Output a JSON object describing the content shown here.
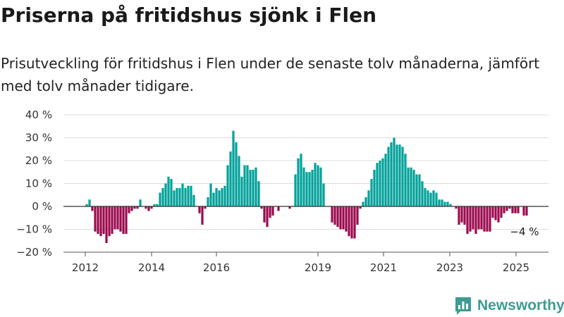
{
  "header": {
    "title": "Priserna på fritidshus sjönk i Flen",
    "subtitle": "Prisutveckling för fritidshus i Flen under de senaste tolv månaderna, jämfört med tolv månader tidigare."
  },
  "chart_data": {
    "type": "bar",
    "title": "Priserna på fritidshus sjönk i Flen",
    "subtitle": "Prisutveckling för fritidshus i Flen under de senaste tolv månaderna, jämfört med tolv månader tidigare.",
    "xlabel": "",
    "ylabel": "",
    "ylim": [
      -20,
      40
    ],
    "yticks": [
      -20,
      -10,
      0,
      10,
      20,
      30,
      40
    ],
    "yticklabels": [
      "−20 %",
      "−10 %",
      "0 %",
      "10 %",
      "20 %",
      "30 %",
      "40 %"
    ],
    "xticks": [
      "2012",
      "2014",
      "2016",
      "2019",
      "2021",
      "2023",
      "2025"
    ],
    "positive_color": "#00a19a",
    "negative_color": "#9b0a4e",
    "grid": true,
    "unit": "%",
    "annotation": {
      "text": "−4 %",
      "value": -4,
      "period": "2025-08"
    },
    "series": [
      {
        "points": [
          {
            "x": "2012-01",
            "y": 1
          },
          {
            "x": "2012-02",
            "y": 3
          },
          {
            "x": "2012-03",
            "y": -2
          },
          {
            "x": "2012-04",
            "y": -11
          },
          {
            "x": "2012-05",
            "y": -12
          },
          {
            "x": "2012-06",
            "y": -13
          },
          {
            "x": "2012-07",
            "y": -12
          },
          {
            "x": "2012-08",
            "y": -16
          },
          {
            "x": "2012-09",
            "y": -13
          },
          {
            "x": "2012-10",
            "y": -12
          },
          {
            "x": "2012-11",
            "y": -10
          },
          {
            "x": "2012-12",
            "y": -10
          },
          {
            "x": "2013-01",
            "y": -11
          },
          {
            "x": "2013-02",
            "y": -12
          },
          {
            "x": "2013-03",
            "y": -12
          },
          {
            "x": "2013-04",
            "y": -3
          },
          {
            "x": "2013-05",
            "y": -2
          },
          {
            "x": "2013-06",
            "y": -1
          },
          {
            "x": "2013-07",
            "y": -1
          },
          {
            "x": "2013-08",
            "y": 3
          },
          {
            "x": "2013-09",
            "y": 0
          },
          {
            "x": "2013-10",
            "y": -1
          },
          {
            "x": "2013-11",
            "y": -2
          },
          {
            "x": "2013-12",
            "y": -1
          },
          {
            "x": "2014-01",
            "y": 1
          },
          {
            "x": "2014-02",
            "y": 1
          },
          {
            "x": "2014-03",
            "y": 6
          },
          {
            "x": "2014-04",
            "y": 8
          },
          {
            "x": "2014-05",
            "y": 10
          },
          {
            "x": "2014-06",
            "y": 13
          },
          {
            "x": "2014-07",
            "y": 12
          },
          {
            "x": "2014-08",
            "y": 7
          },
          {
            "x": "2014-09",
            "y": 8
          },
          {
            "x": "2014-10",
            "y": 8
          },
          {
            "x": "2014-11",
            "y": 10
          },
          {
            "x": "2014-12",
            "y": 8
          },
          {
            "x": "2015-01",
            "y": 9
          },
          {
            "x": "2015-02",
            "y": 9
          },
          {
            "x": "2015-03",
            "y": 5
          },
          {
            "x": "2015-04",
            "y": 0
          },
          {
            "x": "2015-05",
            "y": -3
          },
          {
            "x": "2015-06",
            "y": -8
          },
          {
            "x": "2015-07",
            "y": -1
          },
          {
            "x": "2015-08",
            "y": 4
          },
          {
            "x": "2015-09",
            "y": 10
          },
          {
            "x": "2015-10",
            "y": 6
          },
          {
            "x": "2015-11",
            "y": 8
          },
          {
            "x": "2015-12",
            "y": 7
          },
          {
            "x": "2016-01",
            "y": 8
          },
          {
            "x": "2016-02",
            "y": 9
          },
          {
            "x": "2016-03",
            "y": 18
          },
          {
            "x": "2016-04",
            "y": 24
          },
          {
            "x": "2016-05",
            "y": 33
          },
          {
            "x": "2016-06",
            "y": 28
          },
          {
            "x": "2016-07",
            "y": 22
          },
          {
            "x": "2016-08",
            "y": 13
          },
          {
            "x": "2016-09",
            "y": 18
          },
          {
            "x": "2016-10",
            "y": 18
          },
          {
            "x": "2016-11",
            "y": 16
          },
          {
            "x": "2016-12",
            "y": 16
          },
          {
            "x": "2017-01",
            "y": 17
          },
          {
            "x": "2017-02",
            "y": 11
          },
          {
            "x": "2017-03",
            "y": -1
          },
          {
            "x": "2017-04",
            "y": -7
          },
          {
            "x": "2017-05",
            "y": -9
          },
          {
            "x": "2017-06",
            "y": -5
          },
          {
            "x": "2017-07",
            "y": -4
          },
          {
            "x": "2017-08",
            "y": 0
          },
          {
            "x": "2017-09",
            "y": -2
          },
          {
            "x": "2017-10",
            "y": 0
          },
          {
            "x": "2017-11",
            "y": 0
          },
          {
            "x": "2017-12",
            "y": 0
          },
          {
            "x": "2018-01",
            "y": -1
          },
          {
            "x": "2018-02",
            "y": 0
          },
          {
            "x": "2018-03",
            "y": 14
          },
          {
            "x": "2018-04",
            "y": 21
          },
          {
            "x": "2018-05",
            "y": 23
          },
          {
            "x": "2018-06",
            "y": 17
          },
          {
            "x": "2018-07",
            "y": 15
          },
          {
            "x": "2018-08",
            "y": 15
          },
          {
            "x": "2018-09",
            "y": 16
          },
          {
            "x": "2018-10",
            "y": 19
          },
          {
            "x": "2018-11",
            "y": 18
          },
          {
            "x": "2018-12",
            "y": 17
          },
          {
            "x": "2019-01",
            "y": 10
          },
          {
            "x": "2019-02",
            "y": 0
          },
          {
            "x": "2019-03",
            "y": 0
          },
          {
            "x": "2019-04",
            "y": -7
          },
          {
            "x": "2019-05",
            "y": -8
          },
          {
            "x": "2019-06",
            "y": -9
          },
          {
            "x": "2019-07",
            "y": -10
          },
          {
            "x": "2019-08",
            "y": -10
          },
          {
            "x": "2019-09",
            "y": -11
          },
          {
            "x": "2019-10",
            "y": -13
          },
          {
            "x": "2019-11",
            "y": -14
          },
          {
            "x": "2019-12",
            "y": -14
          },
          {
            "x": "2020-01",
            "y": -8
          },
          {
            "x": "2020-02",
            "y": -1
          },
          {
            "x": "2020-03",
            "y": 2
          },
          {
            "x": "2020-04",
            "y": 4
          },
          {
            "x": "2020-05",
            "y": 7
          },
          {
            "x": "2020-06",
            "y": 12
          },
          {
            "x": "2020-07",
            "y": 16
          },
          {
            "x": "2020-08",
            "y": 19
          },
          {
            "x": "2020-09",
            "y": 20
          },
          {
            "x": "2020-10",
            "y": 21
          },
          {
            "x": "2020-11",
            "y": 23
          },
          {
            "x": "2020-12",
            "y": 26
          },
          {
            "x": "2021-01",
            "y": 28
          },
          {
            "x": "2021-02",
            "y": 30
          },
          {
            "x": "2021-03",
            "y": 27
          },
          {
            "x": "2021-04",
            "y": 27
          },
          {
            "x": "2021-05",
            "y": 26
          },
          {
            "x": "2021-06",
            "y": 23
          },
          {
            "x": "2021-07",
            "y": 17
          },
          {
            "x": "2021-08",
            "y": 17
          },
          {
            "x": "2021-09",
            "y": 16
          },
          {
            "x": "2021-10",
            "y": 14
          },
          {
            "x": "2021-11",
            "y": 14
          },
          {
            "x": "2021-12",
            "y": 11
          },
          {
            "x": "2022-01",
            "y": 8
          },
          {
            "x": "2022-02",
            "y": 7
          },
          {
            "x": "2022-03",
            "y": 6
          },
          {
            "x": "2022-04",
            "y": 7
          },
          {
            "x": "2022-05",
            "y": 6
          },
          {
            "x": "2022-06",
            "y": 3
          },
          {
            "x": "2022-07",
            "y": 3
          },
          {
            "x": "2022-08",
            "y": 2
          },
          {
            "x": "2022-09",
            "y": 2
          },
          {
            "x": "2022-10",
            "y": 1
          },
          {
            "x": "2022-11",
            "y": 0
          },
          {
            "x": "2022-12",
            "y": -1
          },
          {
            "x": "2023-01",
            "y": -8
          },
          {
            "x": "2023-02",
            "y": -7
          },
          {
            "x": "2023-03",
            "y": -8
          },
          {
            "x": "2023-04",
            "y": -12
          },
          {
            "x": "2023-05",
            "y": -11
          },
          {
            "x": "2023-06",
            "y": -10
          },
          {
            "x": "2023-07",
            "y": -12
          },
          {
            "x": "2023-08",
            "y": -10
          },
          {
            "x": "2023-09",
            "y": -10
          },
          {
            "x": "2023-10",
            "y": -11
          },
          {
            "x": "2023-11",
            "y": -11
          },
          {
            "x": "2023-12",
            "y": -11
          },
          {
            "x": "2024-01",
            "y": -5
          },
          {
            "x": "2024-02",
            "y": -6
          },
          {
            "x": "2024-03",
            "y": -7
          },
          {
            "x": "2024-04",
            "y": -5
          },
          {
            "x": "2024-05",
            "y": -3
          },
          {
            "x": "2024-06",
            "y": -2
          },
          {
            "x": "2024-07",
            "y": -1
          },
          {
            "x": "2024-08",
            "y": -3
          },
          {
            "x": "2024-09",
            "y": -3
          },
          {
            "x": "2024-10",
            "y": -3
          },
          {
            "x": "2024-11",
            "y": 0
          },
          {
            "x": "2024-12",
            "y": -4
          },
          {
            "x": "2025-01",
            "y": -4
          }
        ]
      }
    ]
  },
  "footer": {
    "brand": "Newsworthy",
    "brand_color": "#3d9c91",
    "icon": "bar-chart-logo-icon"
  }
}
